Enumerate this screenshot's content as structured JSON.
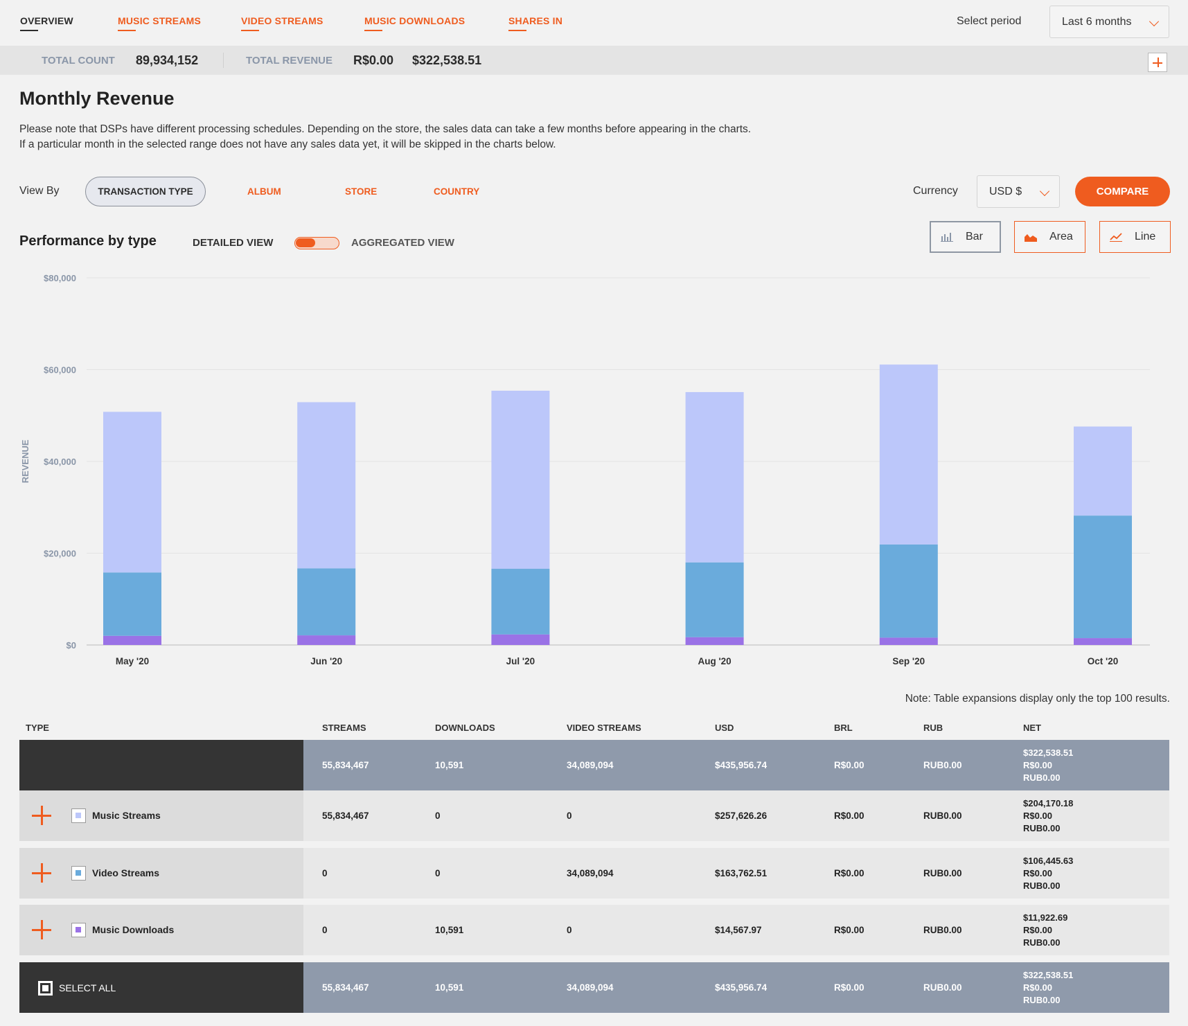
{
  "nav": {
    "tabs": [
      "OVERVIEW",
      "MUSIC STREAMS",
      "VIDEO STREAMS",
      "MUSIC DOWNLOADS",
      "SHARES IN"
    ],
    "period_label": "Select period",
    "period_value": "Last 6 months"
  },
  "totals": {
    "count_label": "TOTAL COUNT",
    "count_value": "89,934,152",
    "revenue_label": "TOTAL REVENUE",
    "revenue_brl": "R$0.00",
    "revenue_usd": "$322,538.51"
  },
  "page": {
    "title": "Monthly Revenue",
    "note_line1": "Please note that DSPs have different processing schedules. Depending on the store, the sales data can take a few months before appearing in the charts.",
    "note_line2": "If a particular month in the selected range does not have any sales data yet, it will be skipped in the charts below."
  },
  "viewby": {
    "label": "View By",
    "tabs": [
      "TRANSACTION TYPE",
      "ALBUM",
      "STORE",
      "COUNTRY"
    ],
    "currency_label": "Currency",
    "currency_value": "USD $",
    "compare_label": "COMPARE"
  },
  "performance": {
    "title": "Performance by type",
    "detailed_label": "DETAILED VIEW",
    "aggregated_label": "AGGREGATED VIEW",
    "chart_types": [
      "Bar",
      "Area",
      "Line"
    ],
    "active_chart_type": "Bar"
  },
  "chart_data": {
    "type": "bar",
    "stacked": true,
    "ylabel": "REVENUE",
    "ylim": [
      0,
      80000
    ],
    "yticks": [
      "$80,000",
      "$60,000",
      "$40,000",
      "$20,000",
      "$0"
    ],
    "ytick_values": [
      80000,
      60000,
      40000,
      20000,
      0
    ],
    "categories": [
      "May '20",
      "Jun '20",
      "Jul '20",
      "Aug '20",
      "Sep '20",
      "Oct '20"
    ],
    "grid": true,
    "series": [
      {
        "key": "music_downloads",
        "color": "#9a72e6",
        "values": [
          2000,
          2100,
          2300,
          1700,
          1600,
          1500
        ]
      },
      {
        "key": "video_streams",
        "color": "#6aabdc",
        "values": [
          13800,
          14600,
          14300,
          16300,
          20300,
          26700
        ]
      },
      {
        "key": "music_streams",
        "color": "#bcc7fa",
        "values": [
          35000,
          36200,
          38800,
          37100,
          39200,
          19400
        ]
      }
    ]
  },
  "table": {
    "note": "Note: Table expansions display only the top 100 results.",
    "headers": [
      "TYPE",
      "STREAMS",
      "DOWNLOADS",
      "VIDEO STREAMS",
      "USD",
      "BRL",
      "RUB",
      "NET"
    ],
    "total_row": {
      "streams": "55,834,467",
      "downloads": "10,591",
      "video": "34,089,094",
      "usd": "$435,956.74",
      "brl": "R$0.00",
      "rub": "RUB0.00",
      "net": [
        "$322,538.51",
        "R$0.00",
        "RUB0.00"
      ]
    },
    "rows": [
      {
        "name": "Music Streams",
        "swatch": "#bcc7fa",
        "streams": "55,834,467",
        "downloads": "0",
        "video": "0",
        "usd": "$257,626.26",
        "brl": "R$0.00",
        "rub": "RUB0.00",
        "net": [
          "$204,170.18",
          "R$0.00",
          "RUB0.00"
        ]
      },
      {
        "name": "Video Streams",
        "swatch": "#6aabdc",
        "streams": "0",
        "downloads": "0",
        "video": "34,089,094",
        "usd": "$163,762.51",
        "brl": "R$0.00",
        "rub": "RUB0.00",
        "net": [
          "$106,445.63",
          "R$0.00",
          "RUB0.00"
        ]
      },
      {
        "name": "Music Downloads",
        "swatch": "#9a72e6",
        "streams": "0",
        "downloads": "10,591",
        "video": "0",
        "usd": "$14,567.97",
        "brl": "R$0.00",
        "rub": "RUB0.00",
        "net": [
          "$11,922.69",
          "R$0.00",
          "RUB0.00"
        ]
      }
    ],
    "select_all": {
      "label": "SELECT ALL",
      "streams": "55,834,467",
      "downloads": "10,591",
      "video": "34,089,094",
      "usd": "$435,956.74",
      "brl": "R$0.00",
      "rub": "RUB0.00",
      "net": [
        "$322,538.51",
        "R$0.00",
        "RUB0.00"
      ]
    }
  },
  "colors": {
    "accent": "#ef5c1f",
    "dark_row": "#343434",
    "total_row": "#8f9aab"
  }
}
